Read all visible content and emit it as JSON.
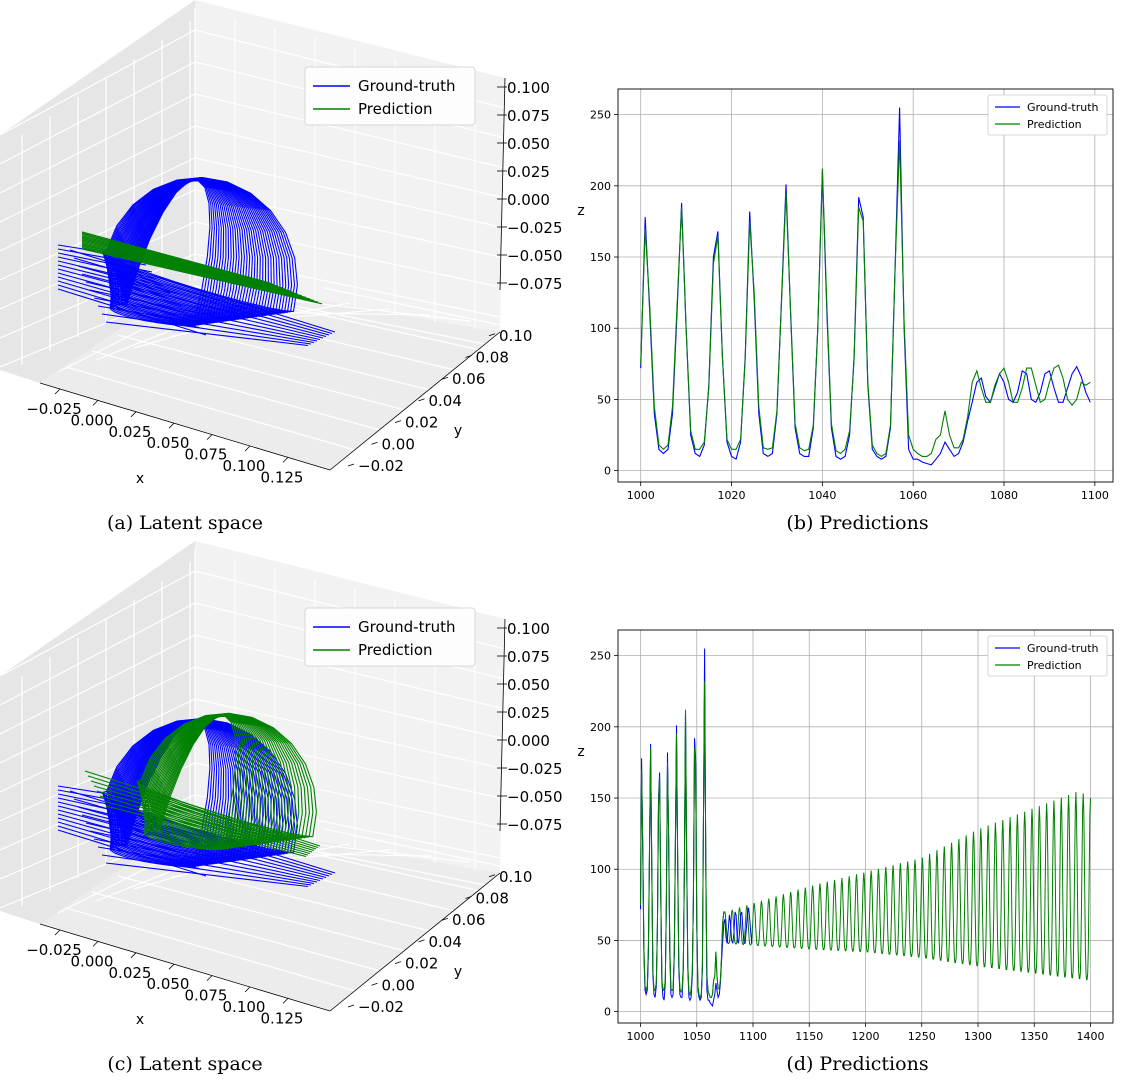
{
  "colors": {
    "ground_truth": "#0000ff",
    "prediction": "#008000",
    "grid": "#b0b0b0",
    "pane": "#f2f2f2",
    "pane_dark": "#e6e6e6"
  },
  "chart_data": [
    {
      "id": "a",
      "type": "line3d",
      "caption": "(a) Latent space",
      "xlabel": "x",
      "ylabel": "y",
      "zlabel": "",
      "x_ticks": [
        "−0.025",
        "0.000",
        "0.025",
        "0.050",
        "0.075",
        "0.100",
        "0.125"
      ],
      "y_ticks": [
        "−0.02",
        "0.00",
        "0.02",
        "0.04",
        "0.06",
        "0.08",
        "0.10"
      ],
      "z_ticks": [
        "0.100",
        "0.075",
        "0.050",
        "0.025",
        "0.000",
        "−0.025",
        "−0.050",
        "−0.075"
      ],
      "legend": [
        "Ground-truth",
        "Prediction"
      ],
      "legend_placement": "top-right",
      "prediction_shape": "collapsed"
    },
    {
      "id": "b",
      "type": "line",
      "caption": "(b) Predictions",
      "xlabel": "",
      "ylabel": "z",
      "xlim": [
        995,
        1104
      ],
      "ylim": [
        -8,
        268
      ],
      "x_ticks": [
        1000,
        1020,
        1040,
        1060,
        1080,
        1100
      ],
      "y_ticks": [
        0,
        50,
        100,
        150,
        200,
        250
      ],
      "grid": true,
      "legend": [
        "Ground-truth",
        "Prediction"
      ],
      "legend_placement": "top-right",
      "series": [
        {
          "name": "Ground-truth",
          "x_start": 1000,
          "values": [
            72,
            178,
            110,
            40,
            15,
            12,
            15,
            40,
            110,
            188,
            100,
            25,
            12,
            10,
            18,
            60,
            150,
            168,
            80,
            20,
            10,
            8,
            20,
            80,
            182,
            120,
            40,
            12,
            10,
            12,
            40,
            120,
            201,
            110,
            30,
            12,
            10,
            10,
            30,
            100,
            210,
            110,
            30,
            10,
            8,
            10,
            25,
            80,
            192,
            178,
            60,
            15,
            10,
            8,
            10,
            30,
            140,
            255,
            100,
            15,
            8,
            8,
            6,
            5,
            4,
            8,
            12,
            20,
            15,
            10,
            12,
            20,
            35,
            48,
            62,
            65,
            52,
            48,
            58,
            68,
            62,
            50,
            48,
            55,
            70,
            68,
            50,
            48,
            55,
            68,
            70,
            58,
            48,
            48,
            58,
            68,
            73,
            66,
            55,
            48
          ]
        },
        {
          "name": "Prediction",
          "x_start": 1000,
          "values": [
            75,
            170,
            115,
            45,
            18,
            15,
            18,
            45,
            115,
            185,
            100,
            28,
            15,
            15,
            20,
            58,
            145,
            165,
            80,
            22,
            15,
            15,
            22,
            78,
            175,
            125,
            45,
            16,
            15,
            16,
            42,
            118,
            195,
            112,
            33,
            16,
            14,
            15,
            32,
            100,
            212,
            115,
            33,
            14,
            12,
            15,
            28,
            78,
            185,
            175,
            62,
            18,
            12,
            10,
            12,
            32,
            140,
            232,
            105,
            25,
            15,
            12,
            10,
            10,
            12,
            22,
            25,
            42,
            25,
            16,
            16,
            22,
            38,
            62,
            70,
            58,
            48,
            48,
            60,
            68,
            72,
            62,
            48,
            48,
            58,
            72,
            72,
            60,
            48,
            50,
            62,
            72,
            74,
            65,
            50,
            46,
            50,
            62,
            60,
            62
          ]
        }
      ]
    },
    {
      "id": "c",
      "type": "line3d",
      "caption": "(c) Latent space",
      "xlabel": "x",
      "ylabel": "y",
      "zlabel": "",
      "x_ticks": [
        "−0.025",
        "0.000",
        "0.025",
        "0.050",
        "0.075",
        "0.100",
        "0.125"
      ],
      "y_ticks": [
        "−0.02",
        "0.00",
        "0.02",
        "0.04",
        "0.06",
        "0.08",
        "0.10"
      ],
      "z_ticks": [
        "0.100",
        "0.075",
        "0.050",
        "0.025",
        "0.000",
        "−0.025",
        "−0.050",
        "−0.075"
      ],
      "legend": [
        "Ground-truth",
        "Prediction"
      ],
      "legend_placement": "top-right",
      "prediction_shape": "full"
    },
    {
      "id": "d",
      "type": "line",
      "caption": "(d) Predictions",
      "xlabel": "",
      "ylabel": "z",
      "xlim": [
        980,
        1420
      ],
      "ylim": [
        -8,
        268
      ],
      "x_ticks": [
        1000,
        1050,
        1100,
        1150,
        1200,
        1250,
        1300,
        1350,
        1400
      ],
      "y_ticks": [
        0,
        50,
        100,
        150,
        200,
        250
      ],
      "grid": true,
      "legend": [
        "Ground-truth",
        "Prediction"
      ],
      "legend_placement": "top-right",
      "series": [
        {
          "name": "Ground-truth",
          "x_start": 1000,
          "x_end": 1100,
          "values": [
            72,
            178,
            110,
            40,
            15,
            12,
            15,
            40,
            110,
            188,
            100,
            25,
            12,
            10,
            18,
            60,
            150,
            168,
            80,
            20,
            10,
            8,
            20,
            80,
            182,
            120,
            40,
            12,
            10,
            12,
            40,
            120,
            201,
            110,
            30,
            12,
            10,
            10,
            30,
            100,
            210,
            110,
            30,
            10,
            8,
            10,
            25,
            80,
            192,
            178,
            60,
            15,
            10,
            8,
            10,
            30,
            140,
            255,
            100,
            15,
            8,
            8,
            6,
            5,
            4,
            8,
            12,
            20,
            15,
            10,
            12,
            20,
            35,
            48,
            62,
            65,
            52,
            48,
            58,
            68,
            62,
            50,
            48,
            55,
            70,
            68,
            50,
            48,
            55,
            68,
            70,
            58,
            48,
            48,
            58,
            68,
            73,
            66,
            55,
            48
          ]
        },
        {
          "name": "Prediction",
          "x_start": 1000,
          "x_end": 1400,
          "period": 6.5,
          "head_values": [
            75,
            170,
            115,
            45,
            18,
            15,
            18,
            45,
            115,
            185,
            100,
            28,
            15,
            15,
            20,
            58,
            145,
            165,
            80,
            22,
            15,
            15,
            22,
            78,
            175,
            125,
            45,
            16,
            15,
            16,
            42,
            118,
            195,
            112,
            33,
            16,
            14,
            15,
            32,
            100,
            212,
            115,
            33,
            14,
            12,
            15,
            28,
            78,
            185,
            175,
            62,
            18,
            12,
            10,
            12,
            32,
            140,
            232,
            105,
            25,
            15,
            12,
            10,
            10,
            12,
            22,
            25,
            42,
            25,
            16,
            16,
            22,
            38,
            62,
            70
          ],
          "tail_peaks": [
            [
              1075,
              70
            ],
            [
              1150,
              88
            ],
            [
              1200,
              98
            ],
            [
              1250,
              108
            ],
            [
              1300,
              128
            ],
            [
              1350,
              143
            ],
            [
              1390,
              155
            ],
            [
              1400,
              150
            ]
          ],
          "tail_troughs": [
            [
              1075,
              48
            ],
            [
              1150,
              44
            ],
            [
              1200,
              42
            ],
            [
              1250,
              38
            ],
            [
              1300,
              32
            ],
            [
              1350,
              27
            ],
            [
              1400,
              22
            ]
          ]
        }
      ]
    }
  ]
}
